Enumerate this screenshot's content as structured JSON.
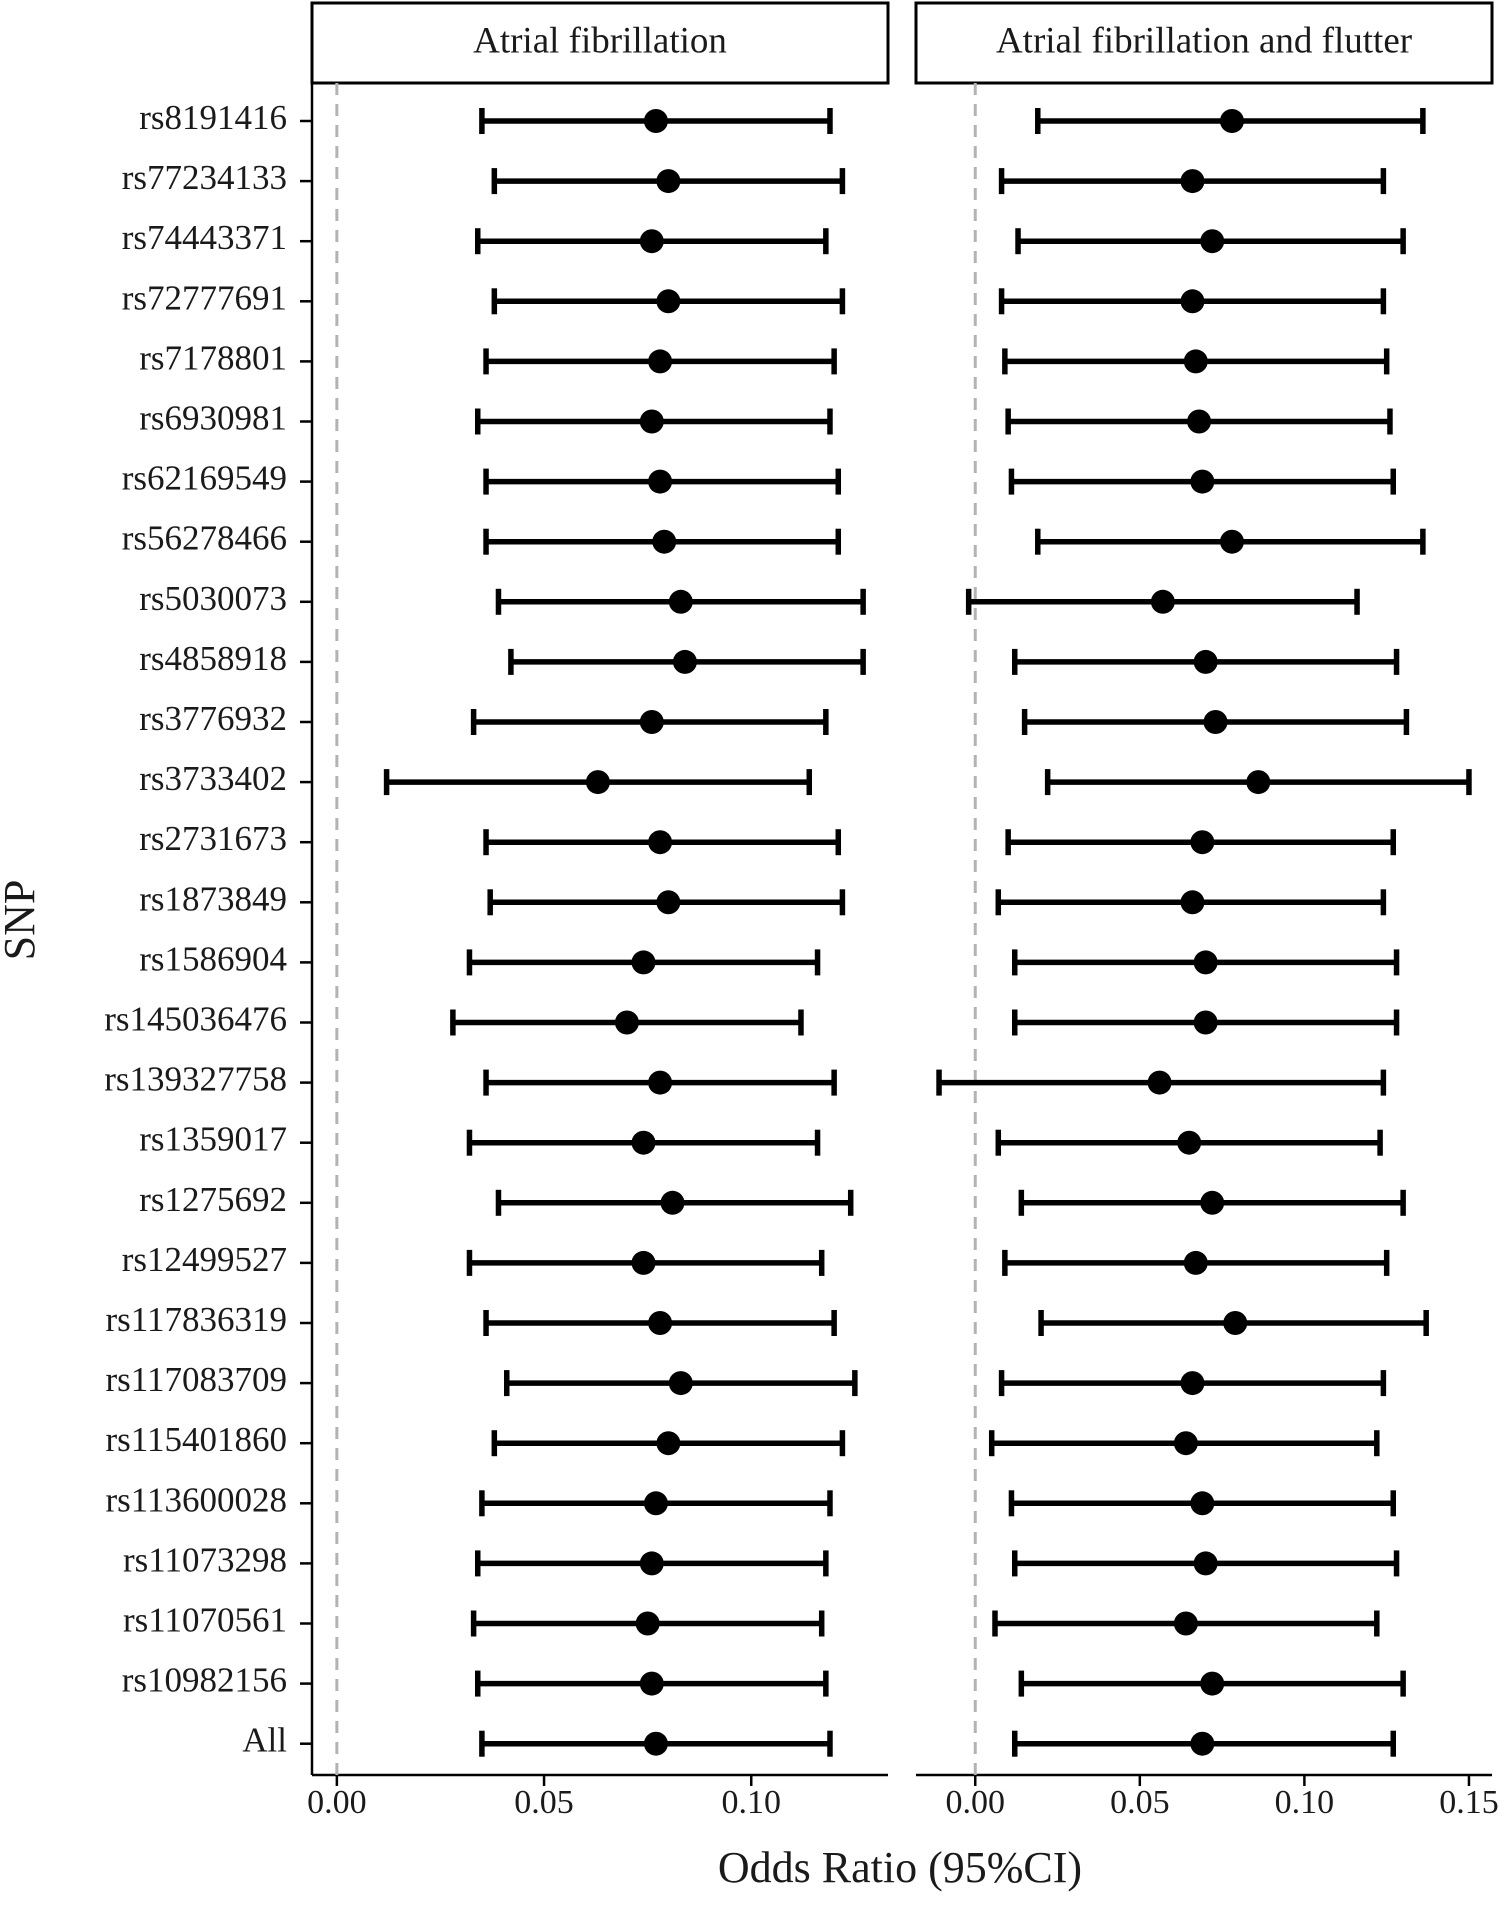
{
  "chart_data": {
    "type": "forest",
    "ylabel": "SNP",
    "xlabel": "Odds Ratio (95%CI)",
    "reference_line": 0,
    "categories": [
      "rs8191416",
      "rs77234133",
      "rs74443371",
      "rs72777691",
      "rs7178801",
      "rs6930981",
      "rs62169549",
      "rs56278466",
      "rs5030073",
      "rs4858918",
      "rs3776932",
      "rs3733402",
      "rs2731673",
      "rs1873849",
      "rs1586904",
      "rs145036476",
      "rs139327758",
      "rs1359017",
      "rs1275692",
      "rs12499527",
      "rs117836319",
      "rs117083709",
      "rs115401860",
      "rs113600028",
      "rs11073298",
      "rs11070561",
      "rs10982156",
      "All"
    ],
    "panels": [
      {
        "title": "Atrial fibrillation",
        "xlim": [
          -0.006,
          0.133
        ],
        "xticks": [
          0.0,
          0.05,
          0.1
        ],
        "xtick_labels": [
          "0.00",
          "0.05",
          "0.10"
        ],
        "or": [
          0.077,
          0.08,
          0.076,
          0.08,
          0.078,
          0.076,
          0.078,
          0.079,
          0.083,
          0.084,
          0.076,
          0.063,
          0.078,
          0.08,
          0.074,
          0.07,
          0.078,
          0.074,
          0.081,
          0.074,
          0.078,
          0.083,
          0.08,
          0.077,
          0.076,
          0.075,
          0.076,
          0.077
        ],
        "lower": [
          0.035,
          0.038,
          0.034,
          0.038,
          0.036,
          0.034,
          0.036,
          0.036,
          0.039,
          0.042,
          0.033,
          0.012,
          0.036,
          0.037,
          0.032,
          0.028,
          0.036,
          0.032,
          0.039,
          0.032,
          0.036,
          0.041,
          0.038,
          0.035,
          0.034,
          0.033,
          0.034,
          0.035
        ],
        "upper": [
          0.119,
          0.122,
          0.118,
          0.122,
          0.12,
          0.119,
          0.121,
          0.121,
          0.127,
          0.127,
          0.118,
          0.114,
          0.121,
          0.122,
          0.116,
          0.112,
          0.12,
          0.116,
          0.124,
          0.117,
          0.12,
          0.125,
          0.122,
          0.119,
          0.118,
          0.117,
          0.118,
          0.119
        ]
      },
      {
        "title": "Atrial fibrillation and flutter",
        "xlim": [
          -0.018,
          0.157
        ],
        "xticks": [
          0.0,
          0.05,
          0.1,
          0.15
        ],
        "xtick_labels": [
          "0.00",
          "0.05",
          "0.10",
          "0.15"
        ],
        "or": [
          0.078,
          0.066,
          0.072,
          0.066,
          0.067,
          0.068,
          0.069,
          0.078,
          0.057,
          0.07,
          0.073,
          0.086,
          0.069,
          0.066,
          0.07,
          0.07,
          0.056,
          0.065,
          0.072,
          0.067,
          0.079,
          0.066,
          0.064,
          0.069,
          0.07,
          0.064,
          0.072,
          0.069
        ],
        "lower": [
          0.019,
          0.008,
          0.013,
          0.008,
          0.009,
          0.01,
          0.011,
          0.019,
          -0.002,
          0.012,
          0.015,
          0.022,
          0.01,
          0.007,
          0.012,
          0.012,
          -0.011,
          0.007,
          0.014,
          0.009,
          0.02,
          0.008,
          0.005,
          0.011,
          0.012,
          0.006,
          0.014,
          0.012
        ],
        "upper": [
          0.136,
          0.124,
          0.13,
          0.124,
          0.125,
          0.126,
          0.127,
          0.136,
          0.116,
          0.128,
          0.131,
          0.15,
          0.127,
          0.124,
          0.128,
          0.128,
          0.124,
          0.123,
          0.13,
          0.125,
          0.137,
          0.124,
          0.122,
          0.127,
          0.128,
          0.122,
          0.13,
          0.127
        ]
      }
    ]
  }
}
